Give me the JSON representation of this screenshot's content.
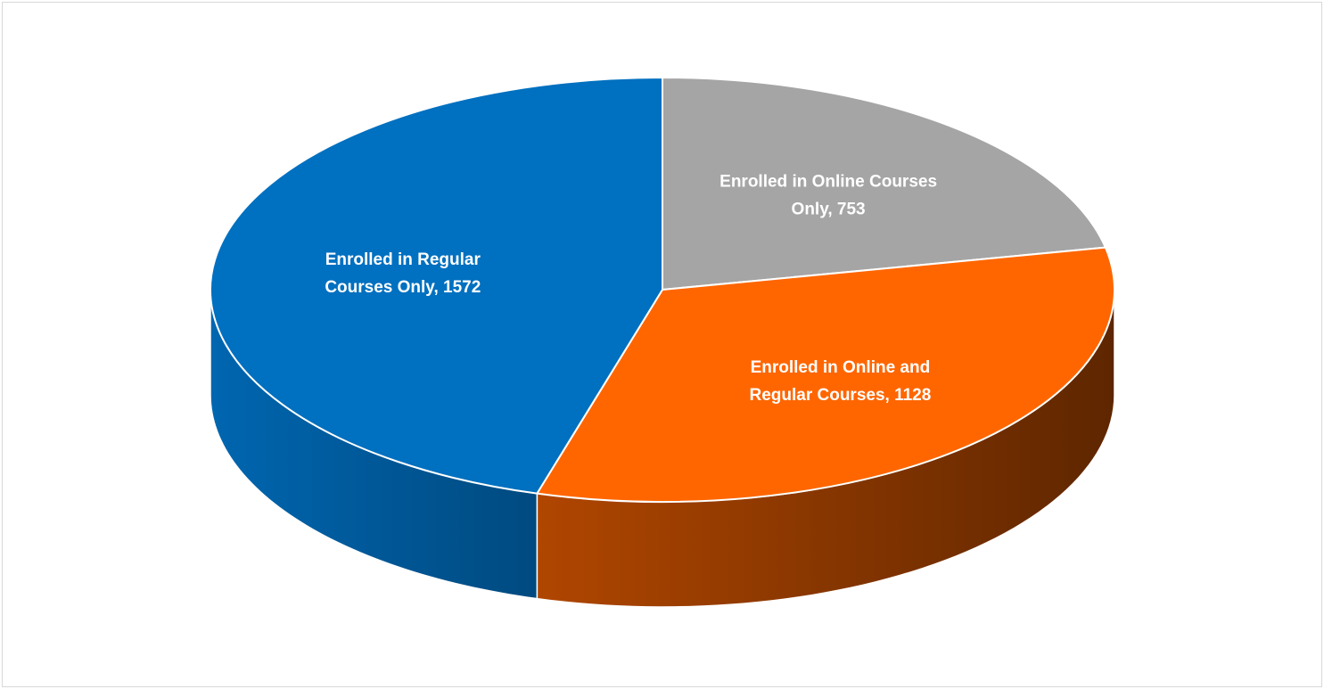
{
  "chart_data": {
    "type": "pie",
    "style": "3d",
    "start_angle_deg": 90,
    "direction": "clockwise",
    "slices": [
      {
        "label": "Enrolled in Online Courses Only",
        "value": 753,
        "data_label_lines": [
          "Enrolled in Online Courses",
          "Only, 753"
        ],
        "color": "#a5a5a5",
        "side_color_light": "#8a8a8a",
        "side_color_dark": "#5f5f5f"
      },
      {
        "label": "Enrolled in Online and Regular Courses",
        "value": 1128,
        "data_label_lines": [
          "Enrolled in Online and",
          "Regular Courses, 1128"
        ],
        "color": "#ff6600",
        "side_color_light": "#b04600",
        "side_color_dark": "#5e2600"
      },
      {
        "label": "Enrolled in Regular Courses Only",
        "value": 1572,
        "data_label_lines": [
          "Enrolled in Regular",
          "Courses Only, 1572"
        ],
        "color": "#0070c0",
        "side_color_light": "#0066b0",
        "side_color_dark": "#004a80"
      }
    ],
    "legend": "none"
  }
}
